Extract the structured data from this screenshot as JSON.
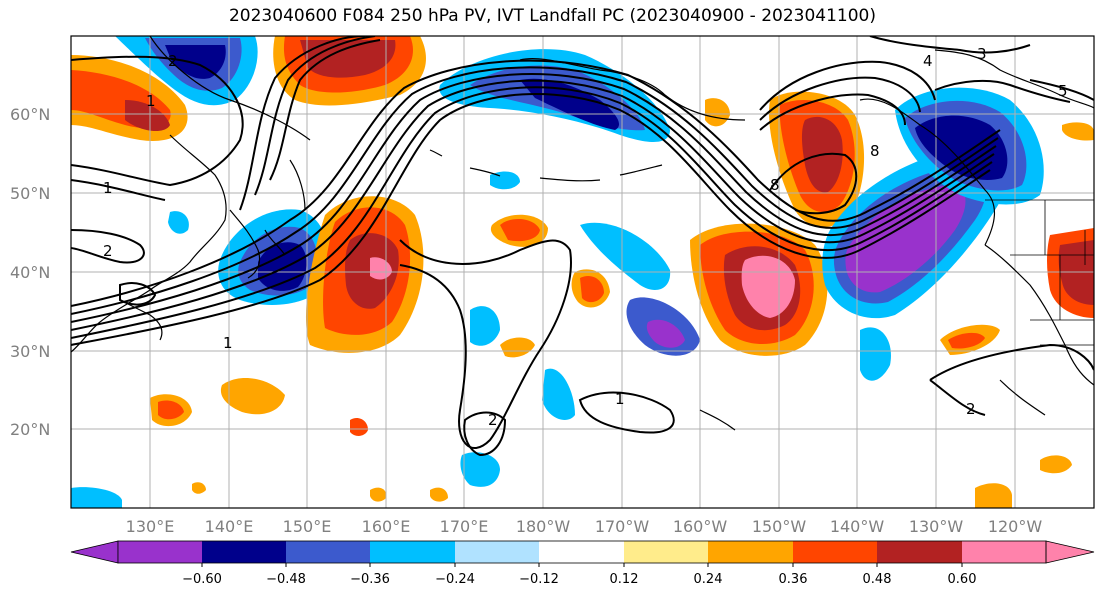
{
  "title": "2023040600 F084 250 hPa PV, IVT Landfall PC (2023040900 - 2023041100)",
  "latitude_labels": [
    "60°N",
    "50°N",
    "40°N",
    "30°N",
    "20°N"
  ],
  "longitude_labels": [
    "130°E",
    "140°E",
    "150°E",
    "160°E",
    "170°E",
    "180°W",
    "170°W",
    "160°W",
    "150°W",
    "140°W",
    "130°W",
    "120°W"
  ],
  "colorbar": {
    "colors": [
      "#9932cc",
      "#00008b",
      "#3c5acd",
      "#00bfff",
      "#b0e2ff",
      "#ffffff",
      "#ffec8b",
      "#ffa500",
      "#ff4500",
      "#b22222",
      "#ff82ab"
    ],
    "tick_labels": [
      "−0.60",
      "−0.48",
      "−0.36",
      "−0.24",
      "−0.12",
      "0.12",
      "0.24",
      "0.36",
      "0.48",
      "0.60"
    ]
  },
  "contour_labels": [
    "1",
    "2",
    "2",
    "1",
    "1",
    "2",
    "2",
    "8",
    "8",
    "4",
    "3",
    "5"
  ]
}
